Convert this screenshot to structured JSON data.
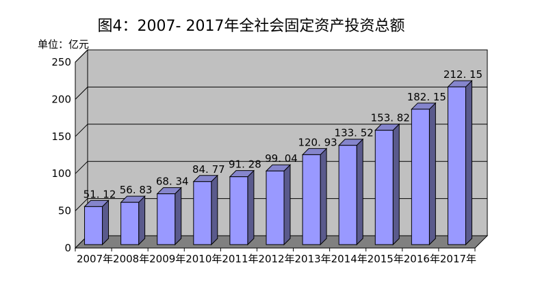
{
  "title": "图4：2007- 2017年全社会固定资产投资总额",
  "unit_label": "单位：亿元",
  "chart_data": {
    "type": "bar",
    "style": "3d-column",
    "title": "图4：2007- 2017年全社会固定资产投资总额",
    "xlabel": "",
    "ylabel": "单位：亿元",
    "categories": [
      "2007年",
      "2008年",
      "2009年",
      "2010年",
      "2011年",
      "2012年",
      "2013年",
      "2014年",
      "2015年",
      "2016年",
      "2017年"
    ],
    "values": [
      51.12,
      56.83,
      68.34,
      84.77,
      91.28,
      99.04,
      120.93,
      133.52,
      153.82,
      182.15,
      212.15
    ],
    "data_labels": [
      "51. 12",
      "56. 83",
      "68. 34",
      "84. 77",
      "91. 28",
      "99. 04",
      "120. 93",
      "133. 52",
      "153. 82",
      "182. 15",
      "212. 15"
    ],
    "y_ticks": [
      0,
      50,
      100,
      150,
      200,
      250
    ],
    "ylim": [
      0,
      250
    ],
    "grid": true,
    "legend": false,
    "colors": {
      "bar_front": "#9999FF",
      "bar_side": "#5A5A8C",
      "bar_top": "#8585CC",
      "wall": "#C0C0C0",
      "floor": "#808080",
      "outline": "#000000",
      "background": "#FFFFFF",
      "text": "#000000"
    }
  }
}
